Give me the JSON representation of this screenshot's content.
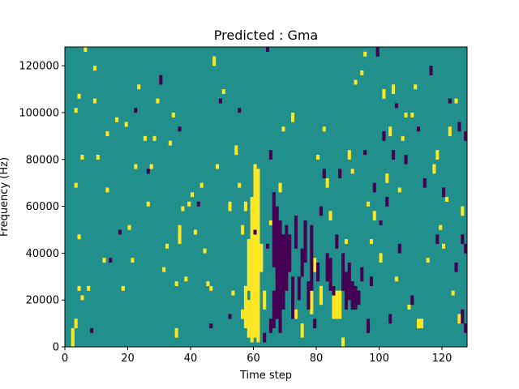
{
  "chart_data": {
    "type": "heatmap",
    "title": "Predicted : Gma",
    "xlabel": "Time step",
    "ylabel": "Frequency (Hz)",
    "xlim": [
      0,
      128
    ],
    "ylim": [
      0,
      128000
    ],
    "xticks": [
      0,
      20,
      40,
      60,
      80,
      100,
      120
    ],
    "yticks": [
      0,
      20000,
      40000,
      60000,
      80000,
      100000,
      120000
    ],
    "grid": false,
    "colormap": "viridis",
    "colors": {
      "background": "#21908d",
      "high": "#fde725",
      "low": "#440154"
    },
    "n_time": 128,
    "n_freq": 64,
    "levels": [
      "low",
      "mid",
      "high"
    ],
    "cells_high": [
      [
        2,
        0,
        4
      ],
      [
        3,
        4,
        6
      ],
      [
        3,
        34,
        35
      ],
      [
        4,
        12,
        13
      ],
      [
        4,
        23,
        24
      ],
      [
        3,
        50,
        51
      ],
      [
        4,
        53,
        54
      ],
      [
        5,
        10,
        11
      ],
      [
        5,
        40,
        41
      ],
      [
        6,
        63,
        64
      ],
      [
        7,
        12,
        13
      ],
      [
        9,
        59,
        60
      ],
      [
        9,
        52,
        53
      ],
      [
        10,
        40,
        41
      ],
      [
        12,
        18,
        19
      ],
      [
        13,
        33,
        34
      ],
      [
        13,
        45,
        46
      ],
      [
        16,
        48,
        49
      ],
      [
        18,
        12,
        13
      ],
      [
        19,
        47,
        48
      ],
      [
        20,
        25,
        26
      ],
      [
        21,
        18,
        19
      ],
      [
        22,
        38,
        39
      ],
      [
        23,
        55,
        56
      ],
      [
        25,
        44,
        45
      ],
      [
        26,
        30,
        31
      ],
      [
        27,
        38,
        39
      ],
      [
        28,
        44,
        45
      ],
      [
        29,
        52,
        53
      ],
      [
        31,
        16,
        17
      ],
      [
        32,
        21,
        22
      ],
      [
        33,
        43,
        44
      ],
      [
        34,
        49,
        50
      ],
      [
        35,
        2,
        4
      ],
      [
        35,
        13,
        14
      ],
      [
        36,
        22,
        26
      ],
      [
        37,
        29,
        30
      ],
      [
        38,
        14,
        15
      ],
      [
        39,
        30,
        31
      ],
      [
        40,
        32,
        33
      ],
      [
        41,
        24,
        25
      ],
      [
        43,
        34,
        35
      ],
      [
        44,
        20,
        21
      ],
      [
        45,
        13,
        14
      ],
      [
        46,
        12,
        13
      ],
      [
        47,
        60,
        62
      ],
      [
        48,
        38,
        39
      ],
      [
        50,
        54,
        55
      ],
      [
        52,
        29,
        31
      ],
      [
        53,
        11,
        12
      ],
      [
        54,
        41,
        43
      ],
      [
        55,
        34,
        35
      ],
      [
        56,
        6,
        8
      ],
      [
        56,
        24,
        26
      ],
      [
        57,
        4,
        13
      ],
      [
        57,
        29,
        31
      ],
      [
        58,
        2,
        10
      ],
      [
        58,
        12,
        23
      ],
      [
        59,
        1,
        32
      ],
      [
        60,
        2,
        39
      ],
      [
        61,
        1,
        38
      ],
      [
        62,
        16,
        22
      ],
      [
        63,
        8,
        12
      ],
      [
        65,
        26,
        27
      ],
      [
        67,
        12,
        14
      ],
      [
        68,
        33,
        35
      ],
      [
        69,
        46,
        47
      ],
      [
        70,
        22,
        24
      ],
      [
        72,
        48,
        50
      ],
      [
        73,
        6,
        8
      ],
      [
        75,
        2,
        5
      ],
      [
        76,
        23,
        25
      ],
      [
        78,
        7,
        12
      ],
      [
        79,
        16,
        19
      ],
      [
        80,
        40,
        41
      ],
      [
        81,
        9,
        13
      ],
      [
        82,
        46,
        47
      ],
      [
        83,
        34,
        36
      ],
      [
        84,
        27,
        29
      ],
      [
        85,
        6,
        13
      ],
      [
        86,
        6,
        12
      ],
      [
        87,
        6,
        12
      ],
      [
        88,
        0,
        2
      ],
      [
        89,
        22,
        23
      ],
      [
        90,
        40,
        42
      ],
      [
        91,
        37,
        38
      ],
      [
        92,
        56,
        57
      ],
      [
        94,
        58,
        59
      ],
      [
        95,
        62,
        63
      ],
      [
        96,
        30,
        31
      ],
      [
        97,
        22,
        23
      ],
      [
        98,
        27,
        29
      ],
      [
        100,
        18,
        20
      ],
      [
        101,
        53,
        55
      ],
      [
        102,
        35,
        37
      ],
      [
        103,
        45,
        47
      ],
      [
        104,
        54,
        56
      ],
      [
        105,
        14,
        15
      ],
      [
        106,
        33,
        34
      ],
      [
        107,
        44,
        45
      ],
      [
        108,
        49,
        50
      ],
      [
        109,
        8,
        9
      ],
      [
        110,
        49,
        50
      ],
      [
        111,
        55,
        56
      ],
      [
        112,
        4,
        6
      ],
      [
        113,
        4,
        6
      ],
      [
        115,
        18,
        19
      ],
      [
        117,
        37,
        39
      ],
      [
        118,
        40,
        42
      ],
      [
        119,
        25,
        26
      ],
      [
        120,
        21,
        22
      ],
      [
        121,
        31,
        32
      ],
      [
        122,
        45,
        47
      ],
      [
        123,
        11,
        12
      ],
      [
        124,
        52,
        53
      ],
      [
        125,
        5,
        7
      ],
      [
        126,
        28,
        30
      ],
      [
        127,
        45,
        46
      ]
    ],
    "cells_low": [
      [
        8,
        3,
        4
      ],
      [
        14,
        18,
        19
      ],
      [
        17,
        24,
        25
      ],
      [
        22,
        50,
        51
      ],
      [
        26,
        37,
        38
      ],
      [
        30,
        56,
        58
      ],
      [
        36,
        46,
        47
      ],
      [
        42,
        30,
        31
      ],
      [
        46,
        4,
        5
      ],
      [
        49,
        52,
        53
      ],
      [
        52,
        6,
        7
      ],
      [
        55,
        50,
        51
      ],
      [
        60,
        24,
        25
      ],
      [
        63,
        1,
        3
      ],
      [
        64,
        21,
        22
      ],
      [
        64,
        63,
        64
      ],
      [
        65,
        3,
        6
      ],
      [
        65,
        40,
        42
      ],
      [
        66,
        4,
        12
      ],
      [
        66,
        17,
        33
      ],
      [
        67,
        6,
        30
      ],
      [
        68,
        3,
        27
      ],
      [
        69,
        8,
        24
      ],
      [
        70,
        12,
        26
      ],
      [
        71,
        16,
        24
      ],
      [
        72,
        6,
        15
      ],
      [
        73,
        21,
        28
      ],
      [
        74,
        10,
        15
      ],
      [
        75,
        15,
        21
      ],
      [
        76,
        18,
        27
      ],
      [
        77,
        8,
        14
      ],
      [
        78,
        12,
        26
      ],
      [
        79,
        4,
        6
      ],
      [
        80,
        14,
        18
      ],
      [
        81,
        28,
        30
      ],
      [
        82,
        36,
        38
      ],
      [
        83,
        14,
        20
      ],
      [
        84,
        12,
        19
      ],
      [
        85,
        11,
        13
      ],
      [
        86,
        21,
        24
      ],
      [
        87,
        36,
        38
      ],
      [
        88,
        12,
        20
      ],
      [
        89,
        8,
        16
      ],
      [
        90,
        10,
        18
      ],
      [
        91,
        8,
        14
      ],
      [
        92,
        8,
        13
      ],
      [
        93,
        9,
        12
      ],
      [
        94,
        14,
        17
      ],
      [
        95,
        41,
        42
      ],
      [
        96,
        3,
        6
      ],
      [
        97,
        13,
        15
      ],
      [
        98,
        33,
        35
      ],
      [
        99,
        62,
        64
      ],
      [
        100,
        26,
        27
      ],
      [
        101,
        44,
        46
      ],
      [
        102,
        30,
        32
      ],
      [
        103,
        5,
        7
      ],
      [
        104,
        40,
        42
      ],
      [
        105,
        51,
        52
      ],
      [
        106,
        20,
        22
      ],
      [
        108,
        39,
        41
      ],
      [
        110,
        9,
        11
      ],
      [
        112,
        46,
        47
      ],
      [
        114,
        34,
        36
      ],
      [
        116,
        58,
        60
      ],
      [
        118,
        22,
        24
      ],
      [
        120,
        32,
        34
      ],
      [
        122,
        52,
        53
      ],
      [
        124,
        16,
        18
      ],
      [
        125,
        46,
        48
      ],
      [
        126,
        5,
        8
      ],
      [
        127,
        3,
        5
      ],
      [
        127,
        20,
        22
      ],
      [
        126,
        22,
        24
      ],
      [
        127,
        44,
        46
      ]
    ]
  }
}
